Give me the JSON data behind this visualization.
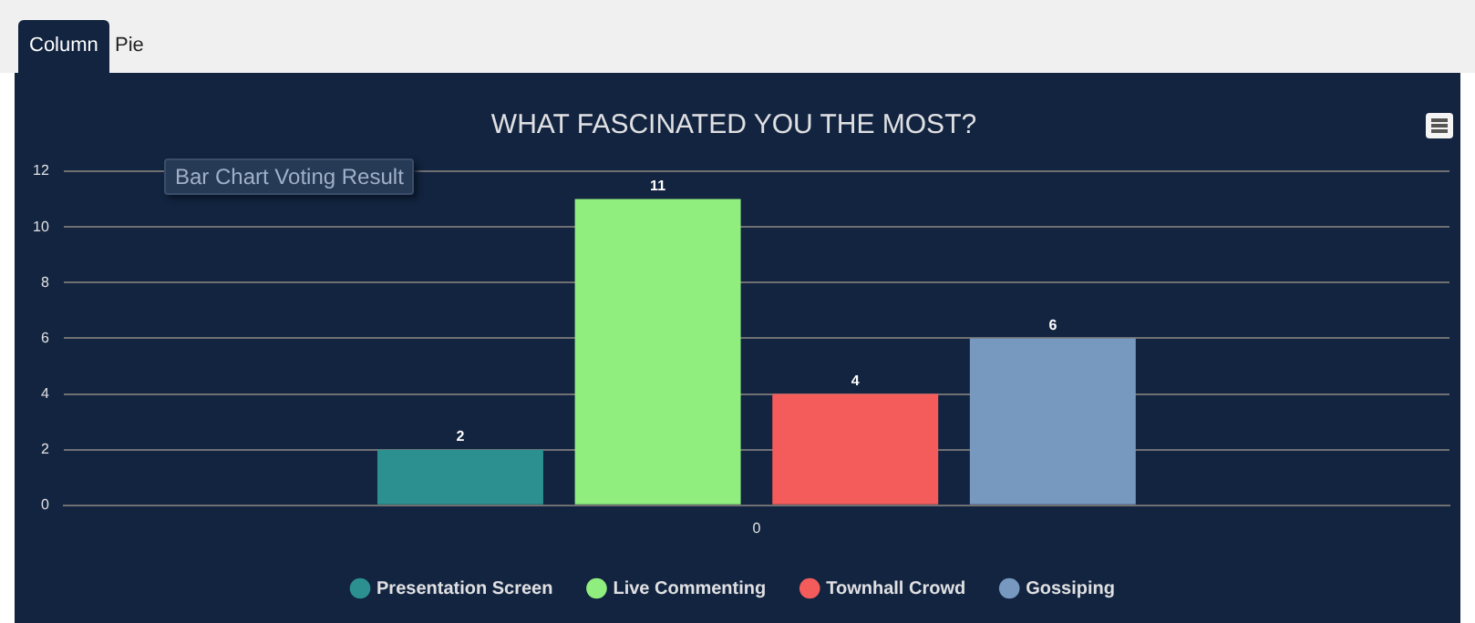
{
  "chart_data": {
    "type": "bar",
    "title": "WHAT FASCINATED YOU THE MOST?",
    "annotations": [
      "Column",
      "Pie",
      "Bar Chart Voting Result"
    ],
    "categories": [
      "0"
    ],
    "series": [
      {
        "name": "Presentation Screen",
        "color": "#2b908f",
        "values": [
          2
        ]
      },
      {
        "name": "Live Commenting",
        "color": "#90ee7e",
        "values": [
          11
        ]
      },
      {
        "name": "Townhall Crowd",
        "color": "#f45b5b",
        "values": [
          4
        ]
      },
      {
        "name": "Gossiping",
        "color": "#7798bf",
        "values": [
          6
        ]
      }
    ],
    "ylim": [
      0,
      12
    ],
    "yticks": [
      0,
      2,
      4,
      6,
      8,
      10,
      12
    ],
    "grid": "y",
    "legend": "bottom",
    "data_labels": true
  }
}
